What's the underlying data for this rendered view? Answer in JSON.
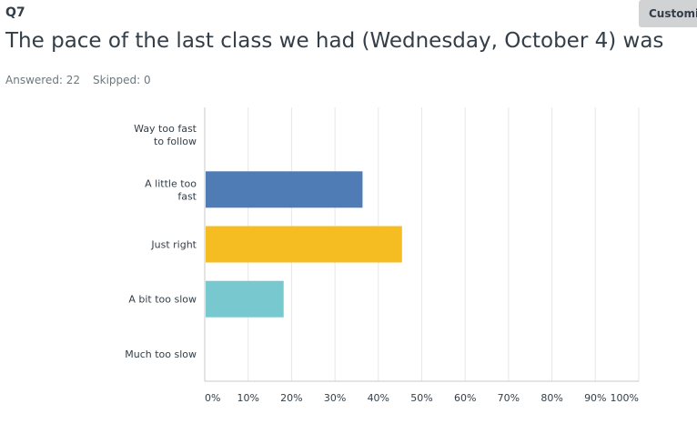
{
  "question": {
    "number": "Q7",
    "title": "The pace of the last class we had (Wednesday, October 4) was",
    "answered": "Answered: 22",
    "skipped": "Skipped: 0"
  },
  "toolbar": {
    "customize_label": "Customiz"
  },
  "chart_data": {
    "type": "bar",
    "orientation": "horizontal",
    "categories": [
      [
        "Way too fast",
        "to follow"
      ],
      [
        "A little too",
        "fast"
      ],
      [
        "Just right"
      ],
      [
        "A bit too slow"
      ],
      [
        "Much too slow"
      ]
    ],
    "values": [
      0,
      36.36,
      45.45,
      18.18,
      0
    ],
    "colors": [
      "#6bc8cd",
      "#507cb6",
      "#f6bd22",
      "#78c9cf",
      "#507cb6"
    ],
    "xlim": [
      0,
      100
    ],
    "xticks": [
      "0%",
      "10%",
      "20%",
      "30%",
      "40%",
      "50%",
      "60%",
      "70%",
      "80%",
      "90%",
      "100%"
    ],
    "grid": true
  }
}
